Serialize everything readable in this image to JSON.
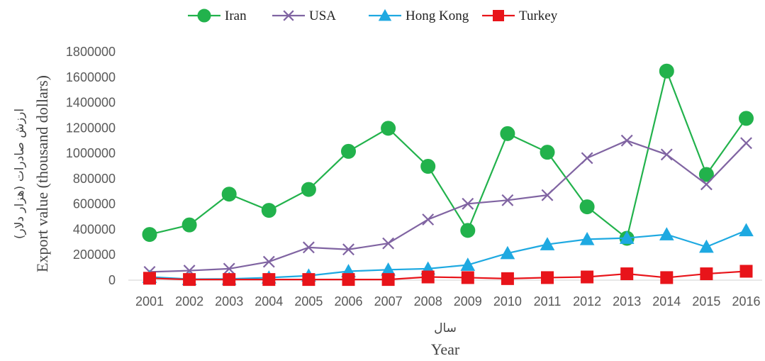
{
  "chart_data": {
    "type": "line",
    "x": [
      "2001",
      "2002",
      "2003",
      "2004",
      "2005",
      "2006",
      "2007",
      "2008",
      "2009",
      "2010",
      "2011",
      "2012",
      "2013",
      "2014",
      "2015",
      "2016"
    ],
    "series": [
      {
        "name": "Iran",
        "color": "#22b24c",
        "marker": "circle",
        "values": [
          360000,
          435000,
          678000,
          550000,
          715000,
          1015000,
          1197000,
          897000,
          392000,
          1155000,
          1008000,
          578000,
          330000,
          1648000,
          833000,
          1275000
        ]
      },
      {
        "name": "USA",
        "color": "#8064a2",
        "marker": "x",
        "values": [
          65000,
          75000,
          90000,
          145000,
          258000,
          242000,
          290000,
          478000,
          602000,
          630000,
          670000,
          962000,
          1100000,
          990000,
          755000,
          1080000
        ]
      },
      {
        "name": "Hong Kong",
        "color": "#1ea9e1",
        "marker": "triangle",
        "values": [
          25000,
          8000,
          10000,
          20000,
          35000,
          70000,
          82000,
          90000,
          120000,
          212000,
          282000,
          322000,
          332000,
          360000,
          262000,
          392000
        ]
      },
      {
        "name": "Turkey",
        "color": "#e8141a",
        "marker": "square",
        "values": [
          15000,
          5000,
          5000,
          5000,
          5000,
          5000,
          5000,
          25000,
          20000,
          12000,
          20000,
          25000,
          50000,
          20000,
          50000,
          70000
        ]
      }
    ],
    "ylim": [
      0,
      1800000
    ],
    "yticks": [
      "0",
      "200000",
      "400000",
      "600000",
      "800000",
      "1000000",
      "1200000",
      "1400000",
      "1600000",
      "1800000"
    ],
    "xlabel": "Year",
    "xlabel_fa": "سال",
    "ylabel": "Export value (thousand dollars)",
    "ylabel_fa": "ارزش صادرات (هزار دلار)",
    "legend_position": "top",
    "grid": false
  }
}
